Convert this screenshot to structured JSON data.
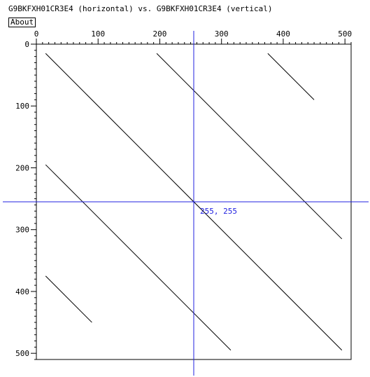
{
  "header": {
    "title": "G9BKFXH01CR3E4 (horizontal) vs. G9BKFXH01CR3E4 (vertical)",
    "about_label": "About"
  },
  "plot": {
    "x_ticks": [
      "0",
      "100",
      "200",
      "300",
      "400",
      "500"
    ],
    "y_ticks": [
      "0",
      "100",
      "200",
      "300",
      "400",
      "500"
    ],
    "cursor_label": "255, 255",
    "cursor": {
      "x": 255,
      "y": 255
    },
    "axis_range": [
      0,
      510
    ],
    "line_color": "#000000",
    "crosshair_color": "#2020e0"
  },
  "chart_data": {
    "type": "scatter",
    "title": "G9BKFXH01CR3E4 (horizontal) vs. G9BKFXH01CR3E4 (vertical)",
    "xlabel": "",
    "ylabel": "",
    "xlim": [
      0,
      510
    ],
    "ylim": [
      0,
      510
    ],
    "segments": [
      {
        "x1": 15,
        "y1": 15,
        "x2": 495,
        "y2": 495
      },
      {
        "x1": 195,
        "y1": 15,
        "x2": 495,
        "y2": 315
      },
      {
        "x1": 375,
        "y1": 15,
        "x2": 450,
        "y2": 90
      },
      {
        "x1": 15,
        "y1": 195,
        "x2": 315,
        "y2": 495
      },
      {
        "x1": 15,
        "y1": 375,
        "x2": 90,
        "y2": 450
      }
    ]
  }
}
